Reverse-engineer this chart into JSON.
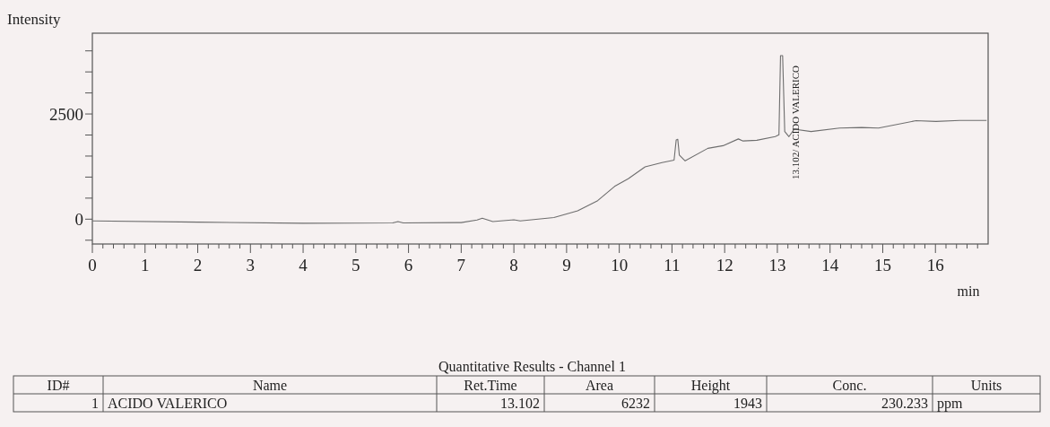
{
  "chart_data": {
    "type": "line",
    "xlabel": "min",
    "ylabel": "Intensity",
    "xlim": [
      0,
      17
    ],
    "ylim": [
      -590,
      4420
    ],
    "xticks": [
      0,
      {
        "value": 0.2,
        "label": null
      },
      {
        "value": 0.4,
        "label": null
      },
      {
        "value": 0.6,
        "label": null
      },
      {
        "value": 0.8,
        "label": null
      },
      1,
      {
        "value": 1.2,
        "label": null
      },
      {
        "value": 1.4,
        "label": null
      },
      {
        "value": 1.6,
        "label": null
      },
      {
        "value": 1.8,
        "label": null
      },
      2,
      {
        "value": 2.2,
        "label": null
      },
      {
        "value": 2.4,
        "label": null
      },
      {
        "value": 2.6,
        "label": null
      },
      {
        "value": 2.8,
        "label": null
      },
      3,
      {
        "value": 3.2,
        "label": null
      },
      {
        "value": 3.4,
        "label": null
      },
      {
        "value": 3.6,
        "label": null
      },
      {
        "value": 3.8,
        "label": null
      },
      4,
      {
        "value": 4.2,
        "label": null
      },
      {
        "value": 4.4,
        "label": null
      },
      {
        "value": 4.6,
        "label": null
      },
      {
        "value": 4.8,
        "label": null
      },
      5,
      {
        "value": 5.2,
        "label": null
      },
      {
        "value": 5.4,
        "label": null
      },
      {
        "value": 5.6,
        "label": null
      },
      {
        "value": 5.8,
        "label": null
      },
      6,
      {
        "value": 6.2,
        "label": null
      },
      {
        "value": 6.4,
        "label": null
      },
      {
        "value": 6.6,
        "label": null
      },
      {
        "value": 6.8,
        "label": null
      },
      7,
      {
        "value": 7.2,
        "label": null
      },
      {
        "value": 7.4,
        "label": null
      },
      {
        "value": 7.6,
        "label": null
      },
      {
        "value": 7.8,
        "label": null
      },
      8,
      {
        "value": 8.2,
        "label": null
      },
      {
        "value": 8.4,
        "label": null
      },
      {
        "value": 8.6,
        "label": null
      },
      {
        "value": 8.8,
        "label": null
      },
      9,
      {
        "value": 9.2,
        "label": null
      },
      {
        "value": 9.4,
        "label": null
      },
      {
        "value": 9.6,
        "label": null
      },
      {
        "value": 9.8,
        "label": null
      },
      10,
      {
        "value": 10.2,
        "label": null
      },
      {
        "value": 10.4,
        "label": null
      },
      {
        "value": 10.6,
        "label": null
      },
      {
        "value": 10.8,
        "label": null
      },
      11,
      {
        "value": 11.2,
        "label": null
      },
      {
        "value": 11.4,
        "label": null
      },
      {
        "value": 11.6,
        "label": null
      },
      {
        "value": 11.8,
        "label": null
      },
      12,
      {
        "value": 12.2,
        "label": null
      },
      {
        "value": 12.4,
        "label": null
      },
      {
        "value": 12.6,
        "label": null
      },
      {
        "value": 12.8,
        "label": null
      },
      13,
      {
        "value": 13.2,
        "label": null
      },
      {
        "value": 13.4,
        "label": null
      },
      {
        "value": 13.6,
        "label": null
      },
      {
        "value": 13.8,
        "label": null
      },
      14,
      {
        "value": 14.2,
        "label": null
      },
      {
        "value": 14.4,
        "label": null
      },
      {
        "value": 14.6,
        "label": null
      },
      {
        "value": 14.8,
        "label": null
      },
      15,
      {
        "value": 15.2,
        "label": null
      },
      {
        "value": 15.4,
        "label": null
      },
      {
        "value": 15.6,
        "label": null
      },
      {
        "value": 15.8,
        "label": null
      },
      16,
      {
        "value": 16.2,
        "label": null
      },
      {
        "value": 16.4,
        "label": null
      },
      {
        "value": 16.6,
        "label": null
      },
      {
        "value": 16.8,
        "label": null
      }
    ],
    "yticks": [
      {
        "value": -500,
        "label": null
      },
      0,
      {
        "value": 500,
        "label": null
      },
      {
        "value": 1000,
        "label": null
      },
      {
        "value": 1500,
        "label": null
      },
      {
        "value": 2000,
        "label": null
      },
      2500,
      {
        "value": 3000,
        "label": null
      },
      {
        "value": 3500,
        "label": null
      },
      {
        "value": 4000,
        "label": null
      }
    ],
    "marker": "none",
    "line_style": "solid",
    "series": [
      {
        "color": "#6e6e6e",
        "x": [
          0,
          2,
          4,
          5.7,
          5.8,
          5.9,
          7,
          7.3,
          7.4,
          7.6,
          8.0,
          8.12,
          8.76,
          9.21,
          9.59,
          9.91,
          10.17,
          10.49,
          10.81,
          11.04,
          11.08,
          11.11,
          11.14,
          11.25,
          11.68,
          11.97,
          12.26,
          12.35,
          12.61,
          12.96,
          13.03,
          13.06,
          13.1,
          13.14,
          13.22,
          13.32,
          13.64,
          14.18,
          14.6,
          14.92,
          15.63,
          16.01,
          16.46,
          16.97
        ],
        "values": [
          -40,
          -70,
          -98,
          -90,
          -57,
          -90,
          -81,
          -20,
          24,
          -57,
          -16,
          -40,
          40,
          200,
          440,
          778,
          961,
          1242,
          1346,
          1403,
          1883,
          1898,
          1522,
          1386,
          1683,
          1747,
          1907,
          1858,
          1875,
          1962,
          2003,
          3886,
          3886,
          2083,
          1962,
          2139,
          2083,
          2164,
          2179,
          2164,
          2340,
          2323,
          2347,
          2347
        ]
      }
    ],
    "annotations": [
      {
        "text": "13.102/ ACIDO VALERICO",
        "x": 13.102,
        "y": 3886
      },
      "Quantitative Results - Channel 1",
      "ID#",
      "Name",
      "Ret.Time",
      "Area",
      "Height",
      "Conc.",
      "Units",
      "1",
      "ACIDO VALERICO",
      "13.102",
      "6232",
      "1943",
      "230.233",
      "ppm"
    ]
  }
}
